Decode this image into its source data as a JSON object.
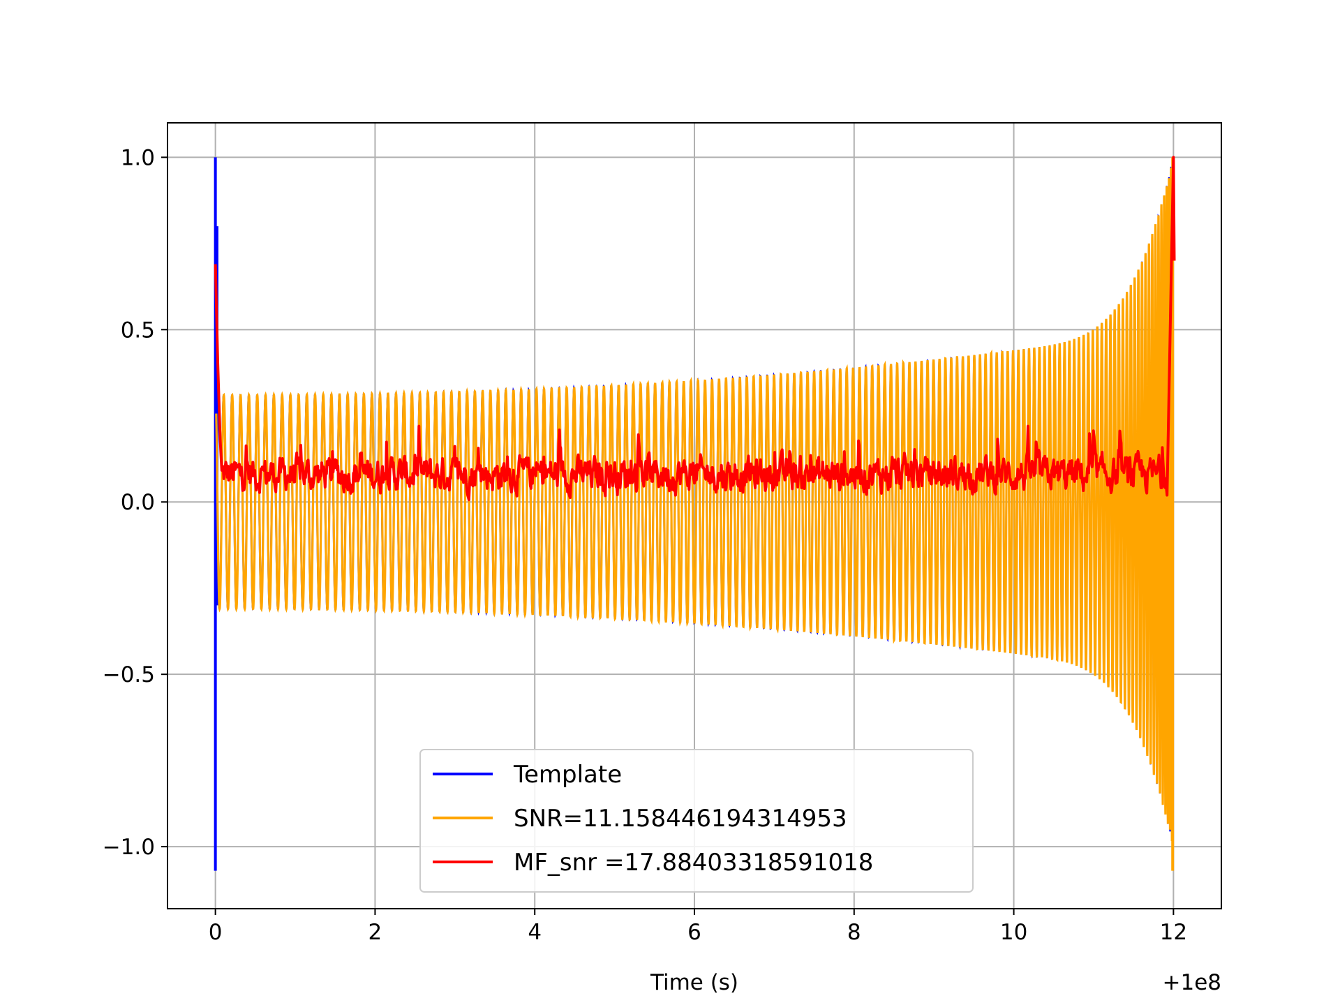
{
  "chart_data": {
    "type": "line",
    "title": "",
    "xlabel": "Time (s)",
    "ylabel": "",
    "x_offset_label": "+1e8",
    "xlim": [
      -0.6,
      12.6
    ],
    "ylim": [
      -1.18,
      1.1
    ],
    "xticks": [
      0,
      2,
      4,
      6,
      8,
      10,
      12
    ],
    "xtick_labels": [
      "0",
      "2",
      "4",
      "6",
      "8",
      "10",
      "12"
    ],
    "yticks": [
      -1.0,
      -0.5,
      0.0,
      0.5,
      1.0
    ],
    "ytick_labels": [
      "−1.0",
      "−0.5",
      "0.0",
      "0.5",
      "1.0"
    ],
    "grid": true,
    "legend_position": "lower-center",
    "series": [
      {
        "name": "Template",
        "color": "#0000ff",
        "shape": "chirp",
        "time_range": [
          0,
          12
        ],
        "initial_envelope": 0.31,
        "envelope_at_10s": 0.44,
        "peak_value": 1.0,
        "min_value": -1.07,
        "cycles_shown": 150
      },
      {
        "name": "SNR=11.158446194314953",
        "color": "#ffa500",
        "shape": "chirp",
        "time_range": [
          0,
          12
        ],
        "initial_envelope": 0.31,
        "envelope_at_10s": 0.44,
        "peak_value": 1.0,
        "min_value": -1.07,
        "cycles_shown": 150
      },
      {
        "name": "MF_snr =17.88403318591018",
        "color": "#ff0000",
        "shape": "noisy-baseline",
        "time_range": [
          0,
          12
        ],
        "start_value": 0.69,
        "baseline_mean": 0.08,
        "baseline_low": 0.0,
        "baseline_high": 0.22,
        "end_peak_time": 12.0,
        "end_peak_value": 1.0
      }
    ]
  }
}
